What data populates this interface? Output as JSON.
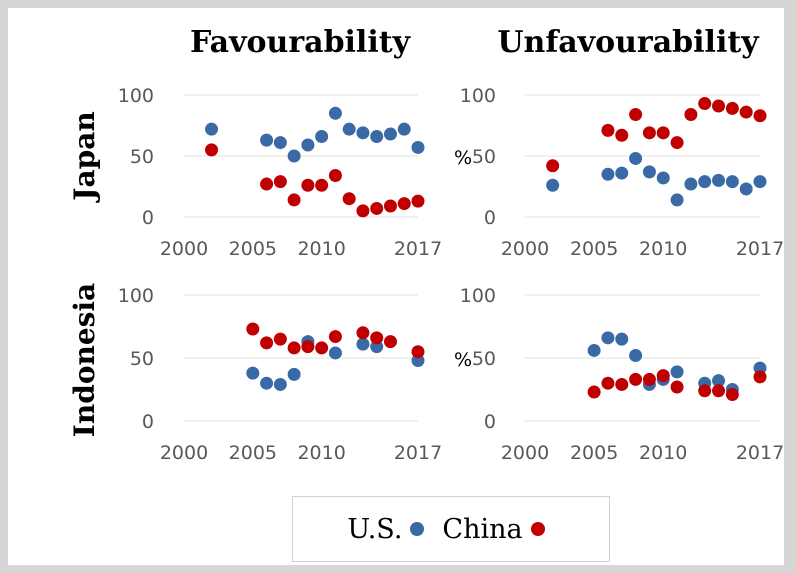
{
  "colors": {
    "us": "#3a6aa5",
    "china": "#c00000"
  },
  "legend": {
    "us": "U.S.",
    "china": "China"
  },
  "chart_data": [
    {
      "type": "scatter",
      "panel": "japan-favourability",
      "title": "Favourability",
      "row_label": "Japan",
      "ylabel": "",
      "xlim": [
        2000,
        2017
      ],
      "ylim": [
        0,
        100
      ],
      "x_ticks": [
        "2000",
        "2005",
        "2010",
        "2017"
      ],
      "y_ticks": [
        "0",
        "50",
        "100"
      ],
      "grid": true,
      "series": [
        {
          "name": "U.S.",
          "color_key": "us",
          "points": [
            [
              2002,
              72
            ],
            [
              2006,
              63
            ],
            [
              2007,
              61
            ],
            [
              2008,
              50
            ],
            [
              2009,
              59
            ],
            [
              2010,
              66
            ],
            [
              2011,
              85
            ],
            [
              2012,
              72
            ],
            [
              2013,
              69
            ],
            [
              2014,
              66
            ],
            [
              2015,
              68
            ],
            [
              2016,
              72
            ],
            [
              2017,
              57
            ]
          ]
        },
        {
          "name": "China",
          "color_key": "china",
          "points": [
            [
              2002,
              55
            ],
            [
              2006,
              27
            ],
            [
              2007,
              29
            ],
            [
              2008,
              14
            ],
            [
              2009,
              26
            ],
            [
              2010,
              26
            ],
            [
              2011,
              34
            ],
            [
              2012,
              15
            ],
            [
              2013,
              5
            ],
            [
              2014,
              7
            ],
            [
              2015,
              9
            ],
            [
              2016,
              11
            ],
            [
              2017,
              13
            ]
          ]
        }
      ]
    },
    {
      "type": "scatter",
      "panel": "japan-unfavourability",
      "title": "Unfavourability",
      "row_label": "",
      "ylabel": "%",
      "xlim": [
        2000,
        2017
      ],
      "ylim": [
        0,
        100
      ],
      "x_ticks": [
        "2000",
        "2005",
        "2010",
        "2017"
      ],
      "y_ticks": [
        "0",
        "50",
        "100"
      ],
      "grid": true,
      "series": [
        {
          "name": "U.S.",
          "color_key": "us",
          "points": [
            [
              2002,
              26
            ],
            [
              2006,
              35
            ],
            [
              2007,
              36
            ],
            [
              2008,
              48
            ],
            [
              2009,
              37
            ],
            [
              2010,
              32
            ],
            [
              2011,
              14
            ],
            [
              2012,
              27
            ],
            [
              2013,
              29
            ],
            [
              2014,
              30
            ],
            [
              2015,
              29
            ],
            [
              2016,
              23
            ],
            [
              2017,
              29
            ]
          ]
        },
        {
          "name": "China",
          "color_key": "china",
          "points": [
            [
              2002,
              42
            ],
            [
              2006,
              71
            ],
            [
              2007,
              67
            ],
            [
              2008,
              84
            ],
            [
              2009,
              69
            ],
            [
              2010,
              69
            ],
            [
              2011,
              61
            ],
            [
              2012,
              84
            ],
            [
              2013,
              93
            ],
            [
              2014,
              91
            ],
            [
              2015,
              89
            ],
            [
              2016,
              86
            ],
            [
              2017,
              83
            ]
          ]
        }
      ]
    },
    {
      "type": "scatter",
      "panel": "indonesia-favourability",
      "title": "",
      "row_label": "Indonesia",
      "ylabel": "",
      "xlim": [
        2000,
        2017
      ],
      "ylim": [
        0,
        100
      ],
      "x_ticks": [
        "2000",
        "2005",
        "2010",
        "2017"
      ],
      "y_ticks": [
        "0",
        "50",
        "100"
      ],
      "grid": true,
      "series": [
        {
          "name": "U.S.",
          "color_key": "us",
          "points": [
            [
              2005,
              38
            ],
            [
              2006,
              30
            ],
            [
              2007,
              29
            ],
            [
              2008,
              37
            ],
            [
              2009,
              63
            ],
            [
              2011,
              54
            ],
            [
              2013,
              61
            ],
            [
              2014,
              59
            ],
            [
              2017,
              48
            ]
          ]
        },
        {
          "name": "China",
          "color_key": "china",
          "points": [
            [
              2005,
              73
            ],
            [
              2006,
              62
            ],
            [
              2007,
              65
            ],
            [
              2008,
              58
            ],
            [
              2009,
              59
            ],
            [
              2010,
              58
            ],
            [
              2011,
              67
            ],
            [
              2013,
              70
            ],
            [
              2014,
              66
            ],
            [
              2015,
              63
            ],
            [
              2017,
              55
            ]
          ]
        }
      ]
    },
    {
      "type": "scatter",
      "panel": "indonesia-unfavourability",
      "title": "",
      "row_label": "",
      "ylabel": "%",
      "xlim": [
        2000,
        2017
      ],
      "ylim": [
        0,
        100
      ],
      "x_ticks": [
        "2000",
        "2005",
        "2010",
        "2017"
      ],
      "y_ticks": [
        "0",
        "50",
        "100"
      ],
      "grid": true,
      "series": [
        {
          "name": "U.S.",
          "color_key": "us",
          "points": [
            [
              2005,
              56
            ],
            [
              2006,
              66
            ],
            [
              2007,
              65
            ],
            [
              2008,
              52
            ],
            [
              2009,
              29
            ],
            [
              2010,
              33
            ],
            [
              2011,
              39
            ],
            [
              2013,
              30
            ],
            [
              2014,
              32
            ],
            [
              2015,
              25
            ],
            [
              2017,
              42
            ]
          ]
        },
        {
          "name": "China",
          "color_key": "china",
          "points": [
            [
              2005,
              23
            ],
            [
              2006,
              30
            ],
            [
              2007,
              29
            ],
            [
              2008,
              33
            ],
            [
              2009,
              33
            ],
            [
              2010,
              36
            ],
            [
              2011,
              27
            ],
            [
              2013,
              24
            ],
            [
              2014,
              24
            ],
            [
              2015,
              21
            ],
            [
              2017,
              35
            ]
          ]
        }
      ]
    }
  ]
}
